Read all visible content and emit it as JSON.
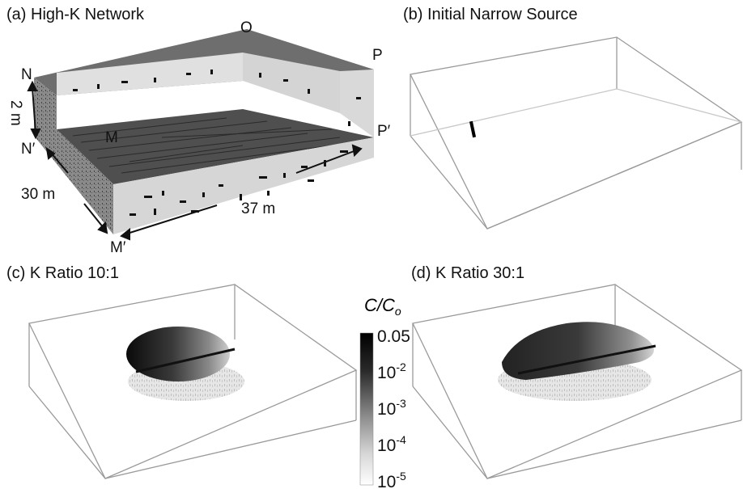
{
  "panels": {
    "a": {
      "label": "(a) High-K Network",
      "points": {
        "O": "O",
        "P": "P",
        "N": "N",
        "N_prime": "N′",
        "M": "M",
        "P_prime": "P′",
        "M_prime": "M′"
      },
      "dimensions": {
        "height": "2 m",
        "width": "30 m",
        "length": "37 m"
      }
    },
    "b": {
      "label": "(b) Initial Narrow Source"
    },
    "c": {
      "label": "(c) K Ratio 10:1"
    },
    "d": {
      "label": "(d) K Ratio 30:1"
    }
  },
  "colorbar": {
    "title_main": "C/C",
    "title_sub": "o",
    "ticks": [
      {
        "base": "0.05",
        "exp": ""
      },
      {
        "base": "10",
        "exp": "-2"
      },
      {
        "base": "10",
        "exp": "-3"
      },
      {
        "base": "10",
        "exp": "-4"
      },
      {
        "base": "10",
        "exp": "-5"
      }
    ],
    "color_high": "#000000",
    "color_low": "#ffffff"
  },
  "colors": {
    "box_top": "#6e6e6e",
    "box_face": "#d9d9d9",
    "box_side": "#8f8f8f",
    "outline": "#9a9a9a"
  }
}
